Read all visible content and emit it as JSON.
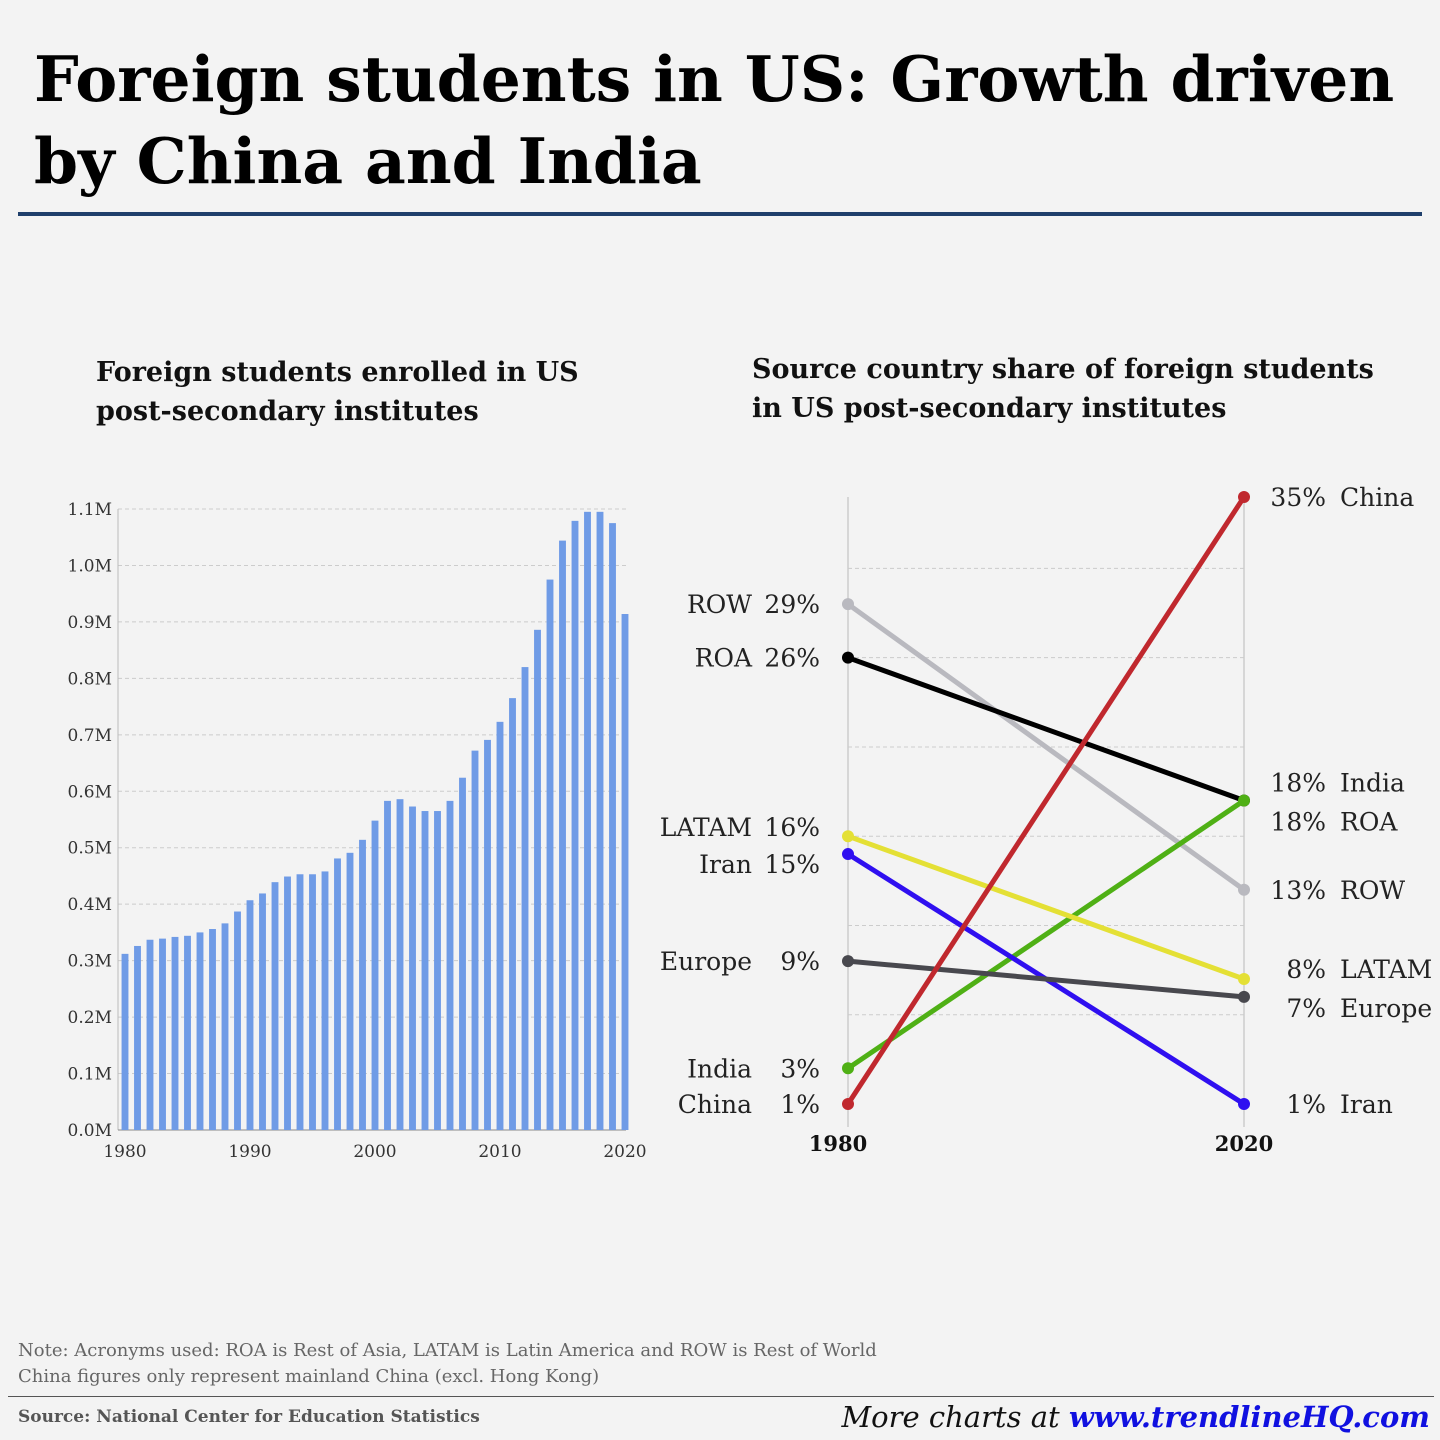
{
  "title": "Foreign students in US: Growth driven by China and India",
  "chart_data": [
    {
      "type": "bar",
      "title": "Foreign students enrolled in US post-secondary institutes",
      "color": "#6f9be6",
      "x": [
        1980,
        1981,
        1982,
        1983,
        1984,
        1985,
        1986,
        1987,
        1988,
        1989,
        1990,
        1991,
        1992,
        1993,
        1994,
        1995,
        1996,
        1997,
        1998,
        1999,
        2000,
        2001,
        2002,
        2003,
        2004,
        2005,
        2006,
        2007,
        2008,
        2009,
        2010,
        2011,
        2012,
        2013,
        2014,
        2015,
        2016,
        2017,
        2018,
        2019,
        2020
      ],
      "values": [
        0.312,
        0.326,
        0.337,
        0.339,
        0.342,
        0.344,
        0.35,
        0.356,
        0.366,
        0.387,
        0.407,
        0.419,
        0.439,
        0.449,
        0.453,
        0.453,
        0.458,
        0.481,
        0.491,
        0.514,
        0.548,
        0.583,
        0.586,
        0.573,
        0.565,
        0.565,
        0.583,
        0.624,
        0.672,
        0.691,
        0.723,
        0.765,
        0.82,
        0.886,
        0.975,
        1.044,
        1.079,
        1.095,
        1.095,
        1.075,
        0.914
      ],
      "ylim": [
        0,
        1.1
      ],
      "yticks": [
        "0.0M",
        "0.1M",
        "0.2M",
        "0.3M",
        "0.4M",
        "0.5M",
        "0.6M",
        "0.7M",
        "0.8M",
        "0.9M",
        "1.0M",
        "1.1M"
      ],
      "xticks": [
        "1980",
        "1990",
        "2000",
        "2010",
        "2020"
      ],
      "grid": true
    },
    {
      "type": "line",
      "title": "Source country share of foreign students in US post-secondary institutes",
      "x": [
        "1980",
        "2020"
      ],
      "ylim": [
        0,
        35
      ],
      "series": [
        {
          "name": "China",
          "values": [
            1,
            35
          ],
          "color": "#c0282e",
          "start_label": "1%",
          "end_label": "35%"
        },
        {
          "name": "ROW",
          "values": [
            29,
            13
          ],
          "color": "#b9b9bf",
          "start_label": "29%",
          "end_label": "13%"
        },
        {
          "name": "ROA",
          "values": [
            26,
            18
          ],
          "color": "#000000",
          "start_label": "26%",
          "end_label": "18%"
        },
        {
          "name": "India",
          "values": [
            3,
            18
          ],
          "color": "#4fb015",
          "start_label": "3%",
          "end_label": "18%"
        },
        {
          "name": "LATAM",
          "values": [
            16,
            8
          ],
          "color": "#e4e035",
          "start_label": "16%",
          "end_label": "8%"
        },
        {
          "name": "Iran",
          "values": [
            15,
            1
          ],
          "color": "#2f0ff0",
          "start_label": "15%",
          "end_label": "1%"
        },
        {
          "name": "Europe",
          "values": [
            9,
            7
          ],
          "color": "#48484e",
          "start_label": "9%",
          "end_label": "7%"
        }
      ]
    }
  ],
  "notes": [
    "Note: Acronyms used: ROA is Rest of Asia, LATAM is Latin America and ROW is Rest of World",
    "China figures only represent mainland China (excl. Hong Kong)"
  ],
  "source": "Source: National Center for Education Statistics",
  "more_prefix": "More charts at ",
  "more_link": "www.trendlineHQ.com"
}
